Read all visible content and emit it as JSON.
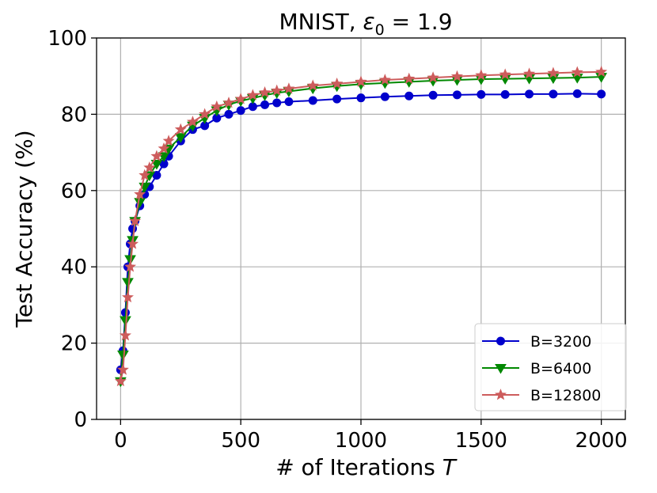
{
  "chart_data": {
    "type": "line",
    "title_prefix": "MNIST, ",
    "title_symbol": "ε",
    "title_subscript": "0",
    "title_suffix": " = 1.9",
    "xlabel_prefix": "# of Iterations ",
    "xlabel_var": "T",
    "ylabel": "Test Accuracy (%)",
    "xlim": [
      -100,
      2100
    ],
    "ylim": [
      0,
      100
    ],
    "xticks": [
      0,
      500,
      1000,
      1500,
      2000
    ],
    "yticks": [
      0,
      20,
      40,
      60,
      80,
      100
    ],
    "grid": true,
    "legend_position": "lower-right",
    "series": [
      {
        "name": "B=3200",
        "color": "#0000cc",
        "marker": "circle",
        "x": [
          0,
          10,
          20,
          30,
          40,
          50,
          60,
          80,
          100,
          120,
          150,
          180,
          200,
          250,
          300,
          350,
          400,
          450,
          500,
          550,
          600,
          650,
          700,
          800,
          900,
          1000,
          1100,
          1200,
          1300,
          1400,
          1500,
          1600,
          1700,
          1800,
          1900,
          2000
        ],
        "y": [
          13,
          18,
          28,
          40,
          46,
          50,
          52,
          56,
          59,
          61,
          64,
          67,
          69,
          73,
          76,
          77,
          79,
          80,
          81,
          82,
          82.5,
          83,
          83.3,
          83.6,
          84,
          84.3,
          84.6,
          84.8,
          85,
          85.1,
          85.2,
          85.2,
          85.3,
          85.3,
          85.4,
          85.3
        ]
      },
      {
        "name": "B=6400",
        "color": "#008800",
        "marker": "triangle-down",
        "x": [
          0,
          10,
          20,
          30,
          40,
          50,
          60,
          80,
          100,
          120,
          150,
          180,
          200,
          250,
          300,
          350,
          400,
          450,
          500,
          550,
          600,
          650,
          700,
          800,
          900,
          1000,
          1100,
          1200,
          1300,
          1400,
          1500,
          1600,
          1700,
          1800,
          1900,
          2000
        ],
        "y": [
          10,
          17,
          26,
          36,
          42,
          47,
          52,
          57,
          61,
          64,
          67,
          69,
          71,
          74,
          77,
          79,
          81,
          82.5,
          83.5,
          84.2,
          85,
          85.6,
          86,
          86.8,
          87.4,
          87.9,
          88.2,
          88.5,
          88.8,
          89,
          89.2,
          89.3,
          89.4,
          89.5,
          89.6,
          89.8
        ]
      },
      {
        "name": "B=12800",
        "color": "#cd5c5c",
        "marker": "star",
        "x": [
          0,
          10,
          20,
          30,
          40,
          50,
          60,
          80,
          100,
          120,
          150,
          180,
          200,
          250,
          300,
          350,
          400,
          450,
          500,
          550,
          600,
          650,
          700,
          800,
          900,
          1000,
          1100,
          1200,
          1300,
          1400,
          1500,
          1600,
          1700,
          1800,
          1900,
          2000
        ],
        "y": [
          10,
          13,
          22,
          32,
          40,
          46,
          52,
          59,
          64,
          66,
          69,
          71,
          73,
          76,
          78,
          80,
          82,
          83,
          84,
          85,
          85.7,
          86.2,
          86.7,
          87.5,
          88,
          88.5,
          89,
          89.3,
          89.6,
          89.9,
          90.2,
          90.4,
          90.6,
          90.8,
          91,
          91.1
        ]
      }
    ]
  }
}
